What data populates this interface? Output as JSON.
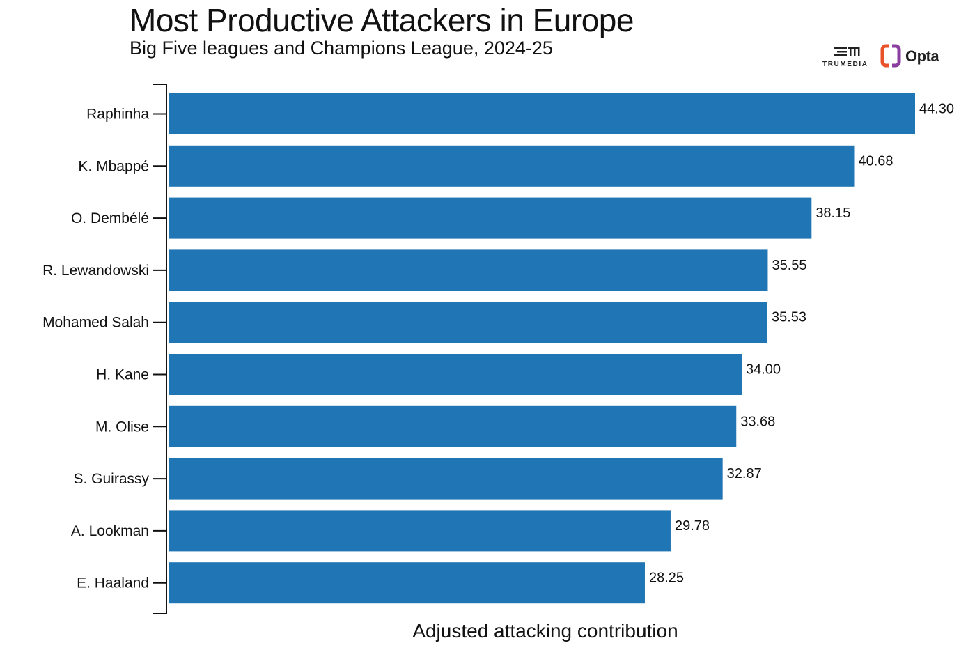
{
  "header": {
    "title": "Most Productive Attackers in Europe",
    "subtitle": "Big Five leagues and Champions League, 2024-25"
  },
  "logos": {
    "trumedia": "TRUMEDIA",
    "opta": "Opta"
  },
  "colors": {
    "bar": "#2075b4",
    "axis": "#111111",
    "text": "#111111"
  },
  "chart_data": {
    "type": "bar",
    "orientation": "horizontal",
    "title": "Most Productive Attackers in Europe",
    "subtitle": "Big Five leagues and Champions League, 2024-25",
    "xlabel": "Adjusted attacking contribution",
    "ylabel": "",
    "categories": [
      "Raphinha",
      "K. Mbappé",
      "O. Dembélé",
      "R. Lewandowski",
      "Mohamed Salah",
      "H. Kane",
      "M. Olise",
      "S. Guirassy",
      "A. Lookman",
      "E. Haaland"
    ],
    "values": [
      44.3,
      40.68,
      38.15,
      35.55,
      35.53,
      34.0,
      33.68,
      32.87,
      29.78,
      28.25
    ],
    "value_labels": [
      "44.30",
      "40.68",
      "38.15",
      "35.55",
      "35.53",
      "34.00",
      "33.68",
      "32.87",
      "29.78",
      "28.25"
    ],
    "xlim": [
      0,
      44.3
    ],
    "grid": false,
    "legend": "none"
  }
}
